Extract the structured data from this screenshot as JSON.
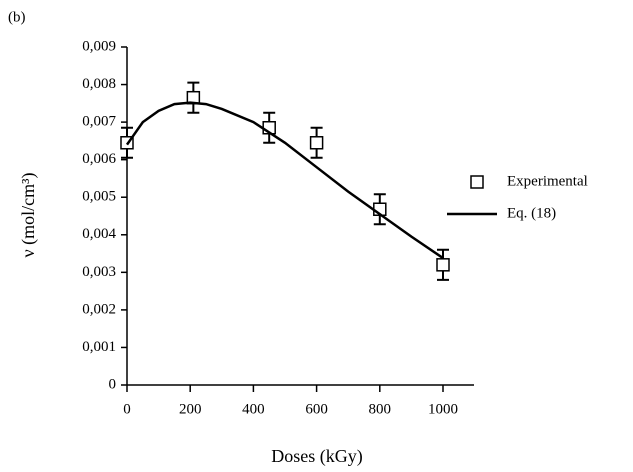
{
  "chart_data": {
    "type": "scatter",
    "panel_label": "(b)",
    "xlabel": "Doses (kGy)",
    "ylabel": "ν (mol/cm³)",
    "xlim": [
      0,
      1100
    ],
    "xticks": [
      0,
      200,
      400,
      600,
      800,
      1000
    ],
    "ylim": [
      0,
      0.009
    ],
    "yticks": [
      0,
      {
        "value": 0.001,
        "label": "0,001"
      },
      {
        "value": 0.002,
        "label": "0,002"
      },
      {
        "value": 0.003,
        "label": "0,003"
      },
      {
        "value": 0.004,
        "label": "0,004"
      },
      {
        "value": 0.005,
        "label": "0,005"
      },
      {
        "value": 0.006,
        "label": "0,006"
      },
      {
        "value": 0.007,
        "label": "0,007"
      },
      {
        "value": 0.008,
        "label": "0,008"
      },
      {
        "value": 0.009,
        "label": "0,009"
      }
    ],
    "legend": "right",
    "series": [
      {
        "name": "Experimental",
        "type": "scatter",
        "color": "#000000",
        "x": [
          0,
          210,
          450,
          600,
          800,
          1000
        ],
        "values": [
          0.00645,
          0.00765,
          0.00685,
          0.00645,
          0.00468,
          0.0032
        ],
        "errors": [
          0.0004,
          0.0004,
          0.0004,
          0.0004,
          0.0004,
          0.0004
        ]
      },
      {
        "name": "Eq. (18)",
        "type": "line",
        "color": "#000000",
        "x": [
          0,
          50,
          100,
          150,
          200,
          250,
          300,
          400,
          500,
          600,
          700,
          800,
          900,
          1000
        ],
        "values": [
          0.0064,
          0.007,
          0.0073,
          0.00748,
          0.00752,
          0.00748,
          0.00735,
          0.007,
          0.00645,
          0.0058,
          0.00515,
          0.00455,
          0.00395,
          0.00338
        ]
      }
    ]
  }
}
